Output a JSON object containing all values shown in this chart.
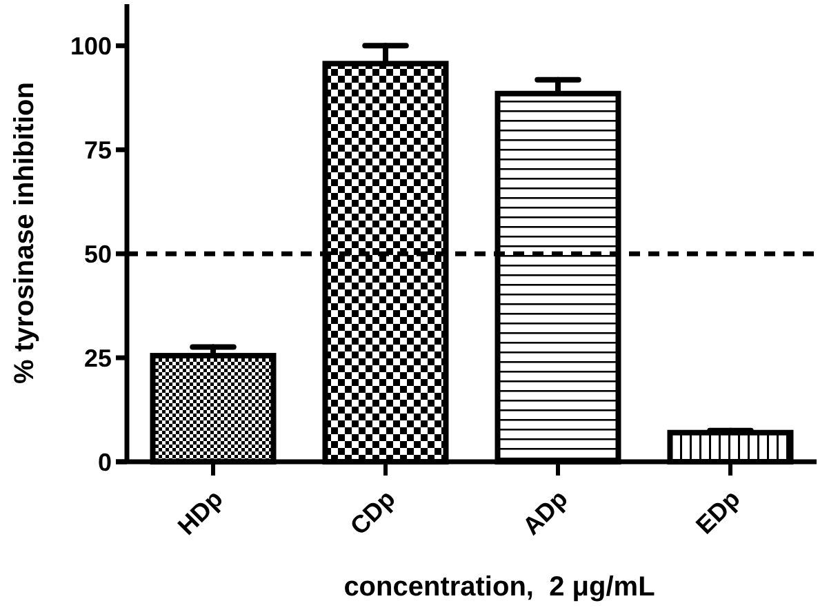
{
  "chart_data": {
    "type": "bar",
    "xlabel": "concentration,  2 μg/mL",
    "ylabel": "% tyrosinase inhibition",
    "categories": [
      "HDp",
      "CDp",
      "ADp",
      "EDp"
    ],
    "values": [
      25.5,
      95.7,
      88.5,
      7.0
    ],
    "errors": [
      2.1,
      4.3,
      3.3,
      0.5
    ],
    "color": "#000000",
    "ylim": [
      0,
      110
    ],
    "yticks": [
      0,
      25,
      50,
      75,
      100
    ],
    "ref_lines": [
      {
        "axis": "y",
        "value": 50,
        "line_style": "dashed",
        "color": "#000000"
      }
    ],
    "grid": false
  }
}
